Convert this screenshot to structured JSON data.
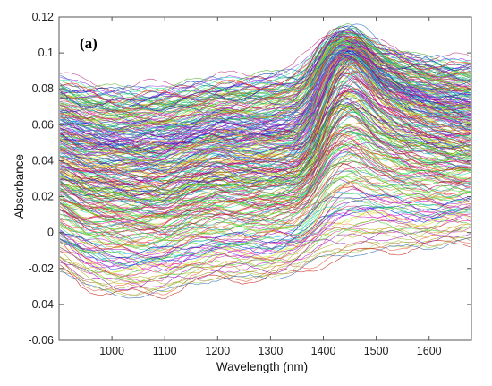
{
  "chart_data": {
    "type": "line",
    "panel_label": "(a)",
    "xlabel": "Wavelength (nm)",
    "ylabel": "Absorbance",
    "xlim": [
      900,
      1680
    ],
    "ylim": [
      -0.06,
      0.12
    ],
    "x_ticks": [
      1000,
      1100,
      1200,
      1300,
      1400,
      1500,
      1600
    ],
    "y_ticks": [
      -0.06,
      -0.04,
      -0.02,
      0,
      0.02,
      0.04,
      0.06,
      0.08,
      0.1,
      0.12
    ],
    "y_tick_labels": [
      "-0.06",
      "-0.04",
      "-0.02",
      "0",
      "0.02",
      "0.04",
      "0.06",
      "0.08",
      "0.1",
      "0.12"
    ],
    "x_tick_labels": [
      "1000",
      "1100",
      "1200",
      "1300",
      "1400",
      "1500",
      "1600"
    ],
    "grid": false,
    "legend": "none",
    "series_count": 300,
    "x": [
      900,
      950,
      1000,
      1050,
      1100,
      1150,
      1200,
      1250,
      1300,
      1350,
      1380,
      1400,
      1420,
      1440,
      1460,
      1480,
      1500,
      1550,
      1600,
      1650,
      1680
    ],
    "series_envelope": [
      {
        "name": "upper",
        "values": [
          0.088,
          0.084,
          0.082,
          0.082,
          0.083,
          0.085,
          0.087,
          0.088,
          0.09,
          0.093,
          0.1,
          0.108,
          0.113,
          0.115,
          0.114,
          0.11,
          0.106,
          0.101,
          0.098,
          0.097,
          0.097
        ]
      },
      {
        "name": "typical",
        "values": [
          0.045,
          0.04,
          0.038,
          0.037,
          0.037,
          0.041,
          0.045,
          0.044,
          0.044,
          0.046,
          0.058,
          0.076,
          0.09,
          0.095,
          0.094,
          0.088,
          0.08,
          0.07,
          0.064,
          0.061,
          0.06
        ]
      },
      {
        "name": "lower",
        "values": [
          -0.02,
          -0.03,
          -0.034,
          -0.035,
          -0.034,
          -0.028,
          -0.026,
          -0.026,
          -0.025,
          -0.022,
          -0.018,
          -0.015,
          -0.014,
          -0.013,
          -0.012,
          -0.011,
          -0.01,
          -0.009,
          -0.008,
          -0.006,
          -0.005
        ]
      }
    ]
  }
}
